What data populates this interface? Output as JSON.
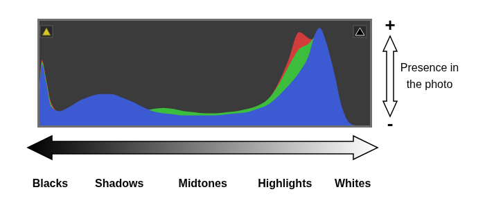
{
  "chart_data": {
    "type": "area",
    "xlim": [
      0,
      255
    ],
    "xticks": [
      {
        "value": 9,
        "label": "Blacks"
      },
      {
        "value": 62,
        "label": "Shadows"
      },
      {
        "value": 126,
        "label": "Midtones"
      },
      {
        "value": 189,
        "label": "Highlights"
      },
      {
        "value": 241,
        "label": "Whites"
      }
    ],
    "ylim": [
      0,
      100
    ],
    "tick_labels": "x",
    "ylabel": "Presence in the photo",
    "annotations": [
      "+",
      "-"
    ],
    "x": [
      0,
      3,
      6,
      10,
      16,
      24,
      32,
      40,
      48,
      56,
      64,
      72,
      80,
      88,
      96,
      104,
      112,
      120,
      128,
      136,
      144,
      152,
      160,
      168,
      176,
      184,
      192,
      200,
      208,
      212,
      216,
      220,
      224,
      228,
      232,
      236,
      240,
      248,
      255
    ],
    "series": [
      {
        "color": "#d23c3c",
        "values": [
          4,
          62,
          45,
          22,
          13,
          11,
          10,
          11,
          11,
          10,
          10,
          10,
          9,
          9,
          9,
          10,
          10,
          11,
          11,
          11,
          12,
          13,
          15,
          18,
          24,
          40,
          62,
          88,
          82,
          80,
          74,
          55,
          30,
          10,
          2,
          0,
          0,
          0,
          0
        ]
      },
      {
        "color": "#3cbe3c",
        "values": [
          4,
          60,
          44,
          20,
          12,
          10,
          10,
          11,
          12,
          12,
          12,
          13,
          14,
          16,
          17,
          16,
          14,
          13,
          12,
          12,
          13,
          14,
          16,
          19,
          25,
          38,
          56,
          72,
          78,
          84,
          88,
          70,
          50,
          30,
          12,
          3,
          0,
          0,
          0
        ]
      },
      {
        "color": "#3c5ad2",
        "values": [
          4,
          58,
          42,
          18,
          14,
          18,
          24,
          28,
          30,
          30,
          27,
          23,
          18,
          14,
          12,
          11,
          10,
          10,
          10,
          10,
          11,
          12,
          13,
          16,
          20,
          28,
          38,
          50,
          68,
          85,
          92,
          82,
          65,
          45,
          22,
          8,
          2,
          0,
          0
        ]
      }
    ]
  }
}
